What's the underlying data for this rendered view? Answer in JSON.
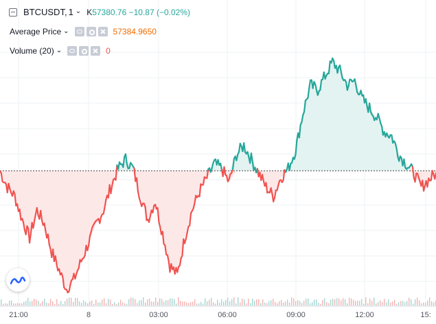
{
  "header": {
    "symbol": "BTCUSDT,",
    "interval": "1",
    "ohlc_prefix": "K",
    "last_value": "57380.76 −10.87 (−0.02%)",
    "collapse_icon": "minus-square-icon"
  },
  "studies": {
    "average_price": {
      "label": "Average Price",
      "value": "57384.9650"
    },
    "volume": {
      "label": "Volume (20)",
      "value": "0"
    }
  },
  "colors": {
    "up": "#26a69a",
    "down": "#ef5350",
    "baseline_fill_up": "#e3f3f1",
    "baseline_fill_down": "#fde8e8",
    "avg_price": "#ef6c00",
    "grid": "#eef0f3"
  },
  "x_axis": {
    "labels": [
      "21:00",
      "8",
      "03:00",
      "06:00",
      "09:00",
      "12:00",
      "15:"
    ]
  },
  "chart_data": {
    "type": "line",
    "title": "",
    "baseline": 57384.965,
    "x_labels": [
      "21:00",
      "8",
      "03:00",
      "06:00",
      "09:00",
      "12:00",
      "15:"
    ],
    "series": [
      {
        "values": [
          57384,
          57350,
          57330,
          57280,
          57240,
          57300,
          57270,
          57210,
          57170,
          57130,
          57150,
          57190,
          57230,
          57270,
          57300,
          57350,
          57390,
          57410,
          57390,
          57330,
          57280,
          57320,
          57250,
          57180,
          57160,
          57240,
          57300,
          57340,
          57370,
          57400,
          57390,
          57360,
          57420,
          57440,
          57410,
          57380,
          57350,
          57330,
          57370,
          57390,
          57430,
          57510,
          57570,
          57560,
          57590,
          57620,
          57600,
          57570,
          57580,
          57540,
          57520,
          57500,
          57470,
          57460,
          57420,
          57400,
          57380,
          57350,
          57365,
          57380
        ]
      }
    ],
    "volume": "shown as small bars along bottom of pane",
    "grid": true
  }
}
